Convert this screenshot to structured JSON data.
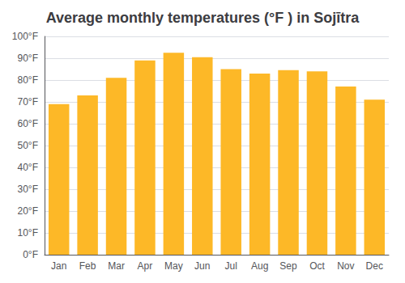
{
  "chart_data": {
    "type": "bar",
    "title": "Average monthly temperatures (°F ) in Sojītra",
    "categories": [
      "Jan",
      "Feb",
      "Mar",
      "Apr",
      "May",
      "Jun",
      "Jul",
      "Aug",
      "Sep",
      "Oct",
      "Nov",
      "Dec"
    ],
    "values": [
      69,
      73,
      81,
      89,
      92.5,
      90.5,
      85,
      83,
      84.5,
      84,
      77,
      71
    ],
    "color": "#FDB827",
    "ylim": [
      0,
      100
    ],
    "yticks": [
      {
        "value": 0,
        "label": "0°F"
      },
      {
        "value": 10,
        "label": "10°F"
      },
      {
        "value": 20,
        "label": "20°F"
      },
      {
        "value": 30,
        "label": "30°F"
      },
      {
        "value": 40,
        "label": "40°F"
      },
      {
        "value": 50,
        "label": "50°F"
      },
      {
        "value": 60,
        "label": "60°F"
      },
      {
        "value": 70,
        "label": "70°F"
      },
      {
        "value": 80,
        "label": "80°F"
      },
      {
        "value": 90,
        "label": "90°F"
      },
      {
        "value": 100,
        "label": "100°F"
      }
    ],
    "grid": true
  }
}
